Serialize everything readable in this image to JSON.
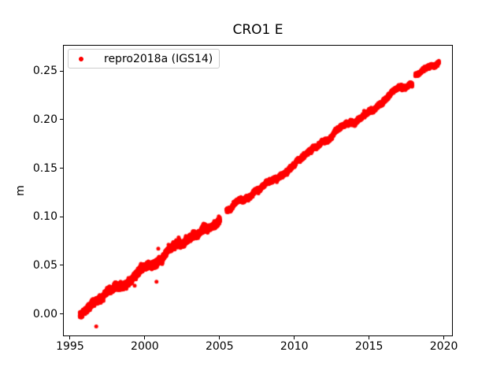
{
  "figure": {
    "background": "#ffffff",
    "spine_color": "#000000",
    "text_color": "#000000"
  },
  "chart_data": {
    "type": "scatter",
    "title": "CRO1 E",
    "xlabel": "",
    "ylabel": "m",
    "xlim": [
      1994.53,
      2020.6
    ],
    "ylim": [
      -0.023,
      0.277
    ],
    "grid": false,
    "xticks": {
      "values": [
        1995,
        2000,
        2005,
        2010,
        2015,
        2020
      ],
      "labels": [
        "1995",
        "2000",
        "2005",
        "2010",
        "2015",
        "2020"
      ]
    },
    "yticks": {
      "values": [
        0.0,
        0.05,
        0.1,
        0.15,
        0.2,
        0.25
      ],
      "labels": [
        "0.00",
        "0.05",
        "0.10",
        "0.15",
        "0.20",
        "0.25"
      ]
    },
    "legend": {
      "position": "upper left",
      "entries": [
        {
          "label": "repro2018a (IGS14)",
          "color": "#ff0000",
          "marker": "circle"
        }
      ]
    },
    "series": [
      {
        "name": "repro2018a (IGS14)",
        "color": "#ff0000",
        "marker": "circle",
        "marker_size_px": 5,
        "points_per_year": 365,
        "trend_segments": [
          {
            "t_start": 1995.6,
            "t_end": 2004.98,
            "v_start": 0.0,
            "v_end": 0.1005,
            "noise_sd": 0.0016,
            "wander_sd": 0.0015
          },
          {
            "t_start": 2005.42,
            "t_end": 2017.84,
            "v_start": 0.108,
            "v_end": 0.24,
            "noise_sd": 0.001,
            "wander_sd": 0.0012
          },
          {
            "t_start": 2018.04,
            "t_end": 2019.62,
            "v_start": 0.2465,
            "v_end": 0.2615,
            "noise_sd": 0.0008,
            "wander_sd": 0.001
          }
        ],
        "gaps": [
          [
            2004.98,
            2005.42
          ],
          [
            2017.84,
            2018.04
          ]
        ],
        "outliers": [
          [
            1996.7,
            -0.012
          ],
          [
            1999.27,
            0.03
          ],
          [
            2000.73,
            0.034
          ],
          [
            2000.85,
            0.068
          ]
        ]
      }
    ]
  }
}
